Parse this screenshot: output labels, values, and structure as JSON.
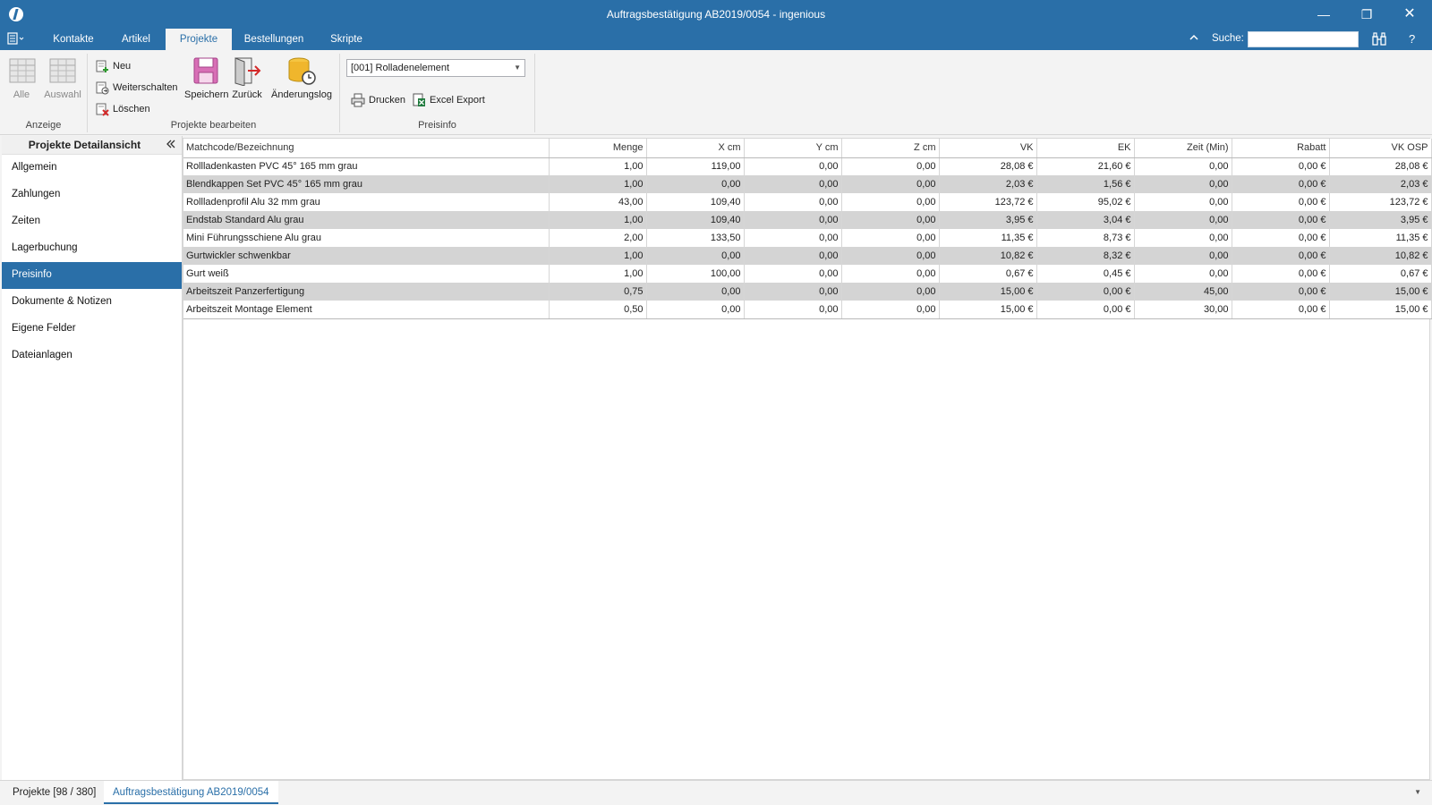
{
  "window": {
    "title": "Auftragsbestätigung AB2019/0054 - ingenious",
    "minimize": "—",
    "maximize": "❐",
    "close": "✕"
  },
  "ribbon_tabs": [
    {
      "label": "Kontakte"
    },
    {
      "label": "Artikel"
    },
    {
      "label": "Projekte"
    },
    {
      "label": "Bestellungen"
    },
    {
      "label": "Skripte"
    }
  ],
  "search": {
    "label": "Suche:",
    "value": ""
  },
  "help_label": "?",
  "ribbon": {
    "anzeige": {
      "label": "Anzeige",
      "alle": "Alle",
      "auswahl": "Auswahl"
    },
    "bearbeiten": {
      "label": "Projekte bearbeiten",
      "neu": "Neu",
      "weiterschalten": "Weiterschalten",
      "loeschen": "Löschen",
      "speichern": "Speichern",
      "zurueck": "Zurück",
      "aenderungslog": "Änderungslog"
    },
    "preisinfo": {
      "label": "Preisinfo",
      "combo_value": "[001] Rolladenelement",
      "drucken": "Drucken",
      "excel_export": "Excel Export"
    }
  },
  "left_panel": {
    "title": "Projekte Detailansicht",
    "items": [
      {
        "label": "Allgemein"
      },
      {
        "label": "Zahlungen"
      },
      {
        "label": "Zeiten"
      },
      {
        "label": "Lagerbuchung"
      },
      {
        "label": "Preisinfo"
      },
      {
        "label": "Dokumente & Notizen"
      },
      {
        "label": "Eigene Felder"
      },
      {
        "label": "Dateianlagen"
      }
    ]
  },
  "grid": {
    "columns": [
      "Matchcode/Bezeichnung",
      "Menge",
      "X cm",
      "Y cm",
      "Z cm",
      "VK",
      "EK",
      "Zeit (Min)",
      "Rabatt",
      "VK OSP"
    ],
    "rows": [
      [
        "Rollladenkasten PVC 45° 165 mm grau",
        "1,00",
        "119,00",
        "0,00",
        "0,00",
        "28,08 €",
        "21,60 €",
        "0,00",
        "0,00 €",
        "28,08 €"
      ],
      [
        "Blendkappen Set PVC 45° 165 mm grau",
        "1,00",
        "0,00",
        "0,00",
        "0,00",
        "2,03 €",
        "1,56 €",
        "0,00",
        "0,00 €",
        "2,03 €"
      ],
      [
        "Rollladenprofil Alu 32 mm grau",
        "43,00",
        "109,40",
        "0,00",
        "0,00",
        "123,72 €",
        "95,02 €",
        "0,00",
        "0,00 €",
        "123,72 €"
      ],
      [
        "Endstab Standard Alu grau",
        "1,00",
        "109,40",
        "0,00",
        "0,00",
        "3,95 €",
        "3,04 €",
        "0,00",
        "0,00 €",
        "3,95 €"
      ],
      [
        "Mini Führungsschiene Alu grau",
        "2,00",
        "133,50",
        "0,00",
        "0,00",
        "11,35 €",
        "8,73 €",
        "0,00",
        "0,00 €",
        "11,35 €"
      ],
      [
        "Gurtwickler schwenkbar",
        "1,00",
        "0,00",
        "0,00",
        "0,00",
        "10,82 €",
        "8,32 €",
        "0,00",
        "0,00 €",
        "10,82 €"
      ],
      [
        "Gurt weiß",
        "1,00",
        "100,00",
        "0,00",
        "0,00",
        "0,67 €",
        "0,45 €",
        "0,00",
        "0,00 €",
        "0,67 €"
      ],
      [
        "Arbeitszeit Panzerfertigung",
        "0,75",
        "0,00",
        "0,00",
        "0,00",
        "15,00 €",
        "0,00 €",
        "45,00",
        "0,00 €",
        "15,00 €"
      ],
      [
        "Arbeitszeit Montage Element",
        "0,50",
        "0,00",
        "0,00",
        "0,00",
        "15,00 €",
        "0,00 €",
        "30,00",
        "0,00 €",
        "15,00 €"
      ]
    ]
  },
  "bottom_tabs": [
    {
      "label": "Projekte [98 / 380]"
    },
    {
      "label": "Auftragsbestätigung AB2019/0054"
    }
  ],
  "colors": {
    "accent": "#2a6fa8",
    "row_alt": "#d4d4d4"
  }
}
